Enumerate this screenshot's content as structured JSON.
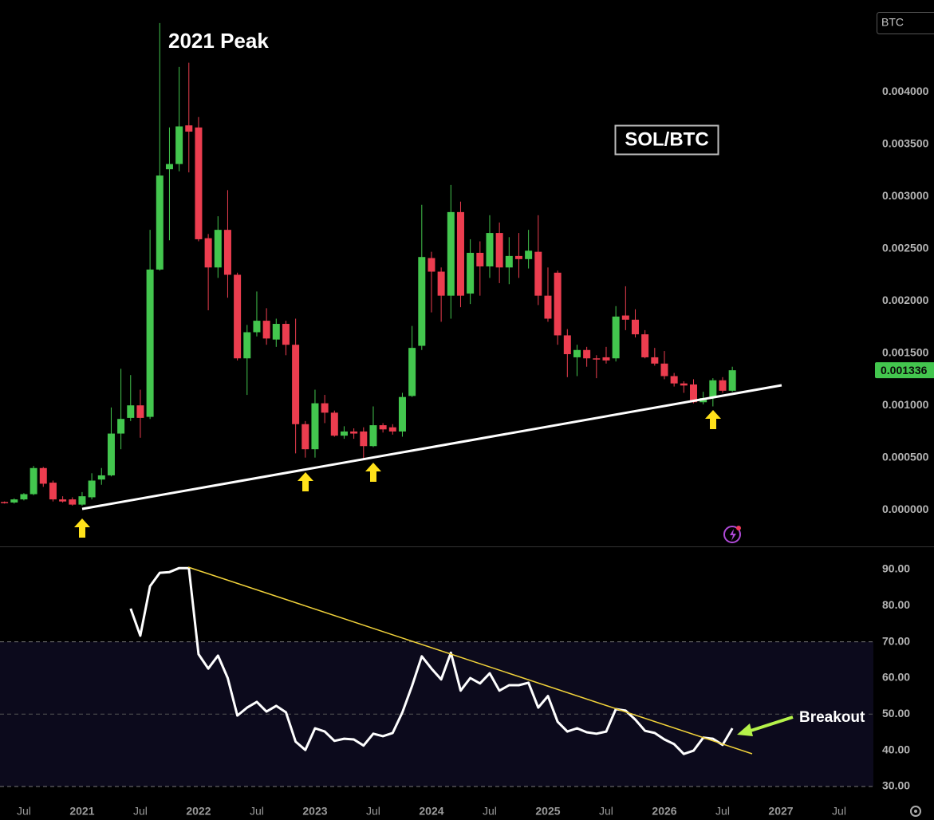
{
  "symbol": "BTC",
  "chart_data": [
    {
      "type": "candlestick",
      "title": "SOL/BTC",
      "annotation": "2021 Peak",
      "up_color": "#43c64e",
      "down_color": "#ec3d4f",
      "x": [
        "2020-05",
        "2020-06",
        "2020-07",
        "2020-08",
        "2020-09",
        "2020-10",
        "2020-11",
        "2020-12",
        "2021-01",
        "2021-02",
        "2021-03",
        "2021-04",
        "2021-05",
        "2021-06",
        "2021-07",
        "2021-08",
        "2021-09",
        "2021-10",
        "2021-11",
        "2021-12",
        "2022-01",
        "2022-02",
        "2022-03",
        "2022-04",
        "2022-05",
        "2022-06",
        "2022-07",
        "2022-08",
        "2022-09",
        "2022-10",
        "2022-11",
        "2022-12",
        "2023-01",
        "2023-02",
        "2023-03",
        "2023-04",
        "2023-05",
        "2023-06",
        "2023-07",
        "2023-08",
        "2023-09",
        "2023-10",
        "2023-11",
        "2023-12",
        "2024-01",
        "2024-02",
        "2024-03",
        "2024-04",
        "2024-05",
        "2024-06",
        "2024-07",
        "2024-08",
        "2024-09",
        "2024-10",
        "2024-11",
        "2024-12",
        "2025-01",
        "2025-02",
        "2025-03",
        "2025-04",
        "2025-05",
        "2025-06",
        "2025-07",
        "2025-08",
        "2025-09",
        "2025-10",
        "2025-11",
        "2025-12",
        "2026-01",
        "2026-02",
        "2026-03",
        "2026-04",
        "2026-05",
        "2026-06",
        "2026-07",
        "2026-08"
      ],
      "open": [
        7.5e-05,
        7e-05,
        0.0001,
        0.00015,
        0.0004,
        0.00026,
        0.0001,
        0.0001,
        5e-05,
        0.00012,
        0.00029,
        0.00033,
        0.00073,
        0.00088,
        0.001,
        0.00089,
        0.0023,
        0.00326,
        0.00331,
        0.00368,
        0.00366,
        0.0026,
        0.00232,
        0.00268,
        0.00225,
        0.00145,
        0.0017,
        0.00181,
        0.00163,
        0.00178,
        0.00158,
        0.00082,
        0.00058,
        0.00102,
        0.00093,
        0.00071,
        0.00075,
        0.00075,
        0.00061,
        0.00081,
        0.00079,
        0.00075,
        0.00109,
        0.00157,
        0.00241,
        0.00228,
        0.00205,
        0.00285,
        0.00207,
        0.00246,
        0.00233,
        0.00265,
        0.00232,
        0.00243,
        0.0024,
        0.00247,
        0.00205,
        0.00227,
        0.00167,
        0.00146,
        0.00153,
        0.00145,
        0.00146,
        0.00145,
        0.00186,
        0.00182,
        0.00168,
        0.00146,
        0.0014,
        0.00128,
        0.00121,
        0.0012,
        0.00103,
        0.00108,
        0.00124,
        0.00114
      ],
      "high": [
        8e-05,
        0.00011,
        0.00016,
        0.00042,
        0.00041,
        0.00028,
        0.00013,
        0.00012,
        0.00017,
        0.00035,
        0.0004,
        0.00098,
        0.00135,
        0.00129,
        0.00115,
        0.00268,
        0.00466,
        0.00366,
        0.00424,
        0.00428,
        0.00376,
        0.00264,
        0.00281,
        0.00306,
        0.00227,
        0.00177,
        0.00209,
        0.00193,
        0.00183,
        0.00181,
        0.00183,
        0.00085,
        0.00115,
        0.0011,
        0.00095,
        0.0008,
        0.00078,
        0.00079,
        0.00099,
        0.00083,
        0.00082,
        0.00112,
        0.00176,
        0.00292,
        0.00247,
        0.00232,
        0.00311,
        0.00295,
        0.00259,
        0.00257,
        0.00282,
        0.00275,
        0.00261,
        0.00265,
        0.00268,
        0.00282,
        0.00232,
        0.00229,
        0.00173,
        0.00158,
        0.00156,
        0.00148,
        0.00156,
        0.00195,
        0.00214,
        0.00192,
        0.00172,
        0.00155,
        0.00152,
        0.00131,
        0.00123,
        0.00125,
        0.00113,
        0.00126,
        0.00127,
        0.00137
      ],
      "low": [
        6e-05,
        6e-05,
        9e-05,
        0.00014,
        0.00022,
        8e-05,
        7e-05,
        4e-05,
        4e-05,
        0.0001,
        0.00024,
        0.00032,
        0.00058,
        0.00085,
        0.00069,
        0.00087,
        0.00229,
        0.00258,
        0.00324,
        0.00323,
        0.00257,
        0.00191,
        0.00222,
        0.00203,
        0.00143,
        0.0011,
        0.00166,
        0.00158,
        0.00156,
        0.00148,
        0.00054,
        0.0005,
        0.0005,
        0.00083,
        0.0007,
        0.00068,
        0.00068,
        0.00049,
        0.0006,
        0.00074,
        0.00072,
        0.0007,
        0.00108,
        0.00153,
        0.00189,
        0.0018,
        0.00183,
        0.00194,
        0.00197,
        0.00205,
        0.00222,
        0.00217,
        0.00216,
        0.00222,
        0.00231,
        0.00196,
        0.0018,
        0.00158,
        0.00127,
        0.00128,
        0.00137,
        0.00126,
        0.0014,
        0.00142,
        0.00172,
        0.00165,
        0.00145,
        0.00138,
        0.00125,
        0.00118,
        0.00112,
        0.00102,
        0.00101,
        0.00099,
        0.00112,
        0.00113
      ],
      "close": [
        7e-05,
        0.0001,
        0.00015,
        0.0004,
        0.00025,
        0.0001,
        8e-05,
        5e-05,
        0.00013,
        0.00028,
        0.00033,
        0.00073,
        0.00087,
        0.001,
        0.00088,
        0.0023,
        0.0032,
        0.00331,
        0.00367,
        0.00362,
        0.00259,
        0.00232,
        0.00268,
        0.00225,
        0.00145,
        0.0017,
        0.00181,
        0.00164,
        0.00178,
        0.00158,
        0.00082,
        0.00058,
        0.00102,
        0.00093,
        0.00071,
        0.00075,
        0.00073,
        0.00061,
        0.00081,
        0.00077,
        0.00075,
        0.00108,
        0.00155,
        0.00242,
        0.00228,
        0.00205,
        0.00285,
        0.00205,
        0.00246,
        0.00233,
        0.00265,
        0.00232,
        0.00243,
        0.0024,
        0.00248,
        0.00205,
        0.00183,
        0.00167,
        0.00149,
        0.00153,
        0.00145,
        0.00144,
        0.00143,
        0.00185,
        0.00182,
        0.00168,
        0.00146,
        0.0014,
        0.00128,
        0.00121,
        0.00119,
        0.00103,
        0.00107,
        0.00124,
        0.00114,
        0.001336
      ],
      "last_price": {
        "value": 0.001336,
        "label": "0.001336"
      },
      "xlim": [
        "2020-05",
        "2027-07"
      ],
      "ylim": [
        -0.00035,
        0.00488
      ],
      "yticks": [
        {
          "value": 0,
          "label": "0.000000"
        },
        {
          "value": 0.0005,
          "label": "0.000500"
        },
        {
          "value": 0.001,
          "label": "0.001000"
        },
        {
          "value": 0.0015,
          "label": "0.001500"
        },
        {
          "value": 0.002,
          "label": "0.002000"
        },
        {
          "value": 0.0025,
          "label": "0.002500"
        },
        {
          "value": 0.003,
          "label": "0.003000"
        },
        {
          "value": 0.0035,
          "label": "0.003500"
        },
        {
          "value": 0.004,
          "label": "0.004000"
        }
      ]
    },
    {
      "type": "line",
      "annotation": "Breakout",
      "color": "#ffffff",
      "x": [
        "2021-06",
        "2021-07",
        "2021-08",
        "2021-09",
        "2021-10",
        "2021-11",
        "2021-12",
        "2022-01",
        "2022-02",
        "2022-03",
        "2022-04",
        "2022-05",
        "2022-06",
        "2022-07",
        "2022-08",
        "2022-09",
        "2022-10",
        "2022-11",
        "2022-12",
        "2023-01",
        "2023-02",
        "2023-03",
        "2023-04",
        "2023-05",
        "2023-06",
        "2023-07",
        "2023-08",
        "2023-09",
        "2023-10",
        "2023-11",
        "2023-12",
        "2024-01",
        "2024-02",
        "2024-03",
        "2024-04",
        "2024-05",
        "2024-06",
        "2024-07",
        "2024-08",
        "2024-09",
        "2024-10",
        "2024-11",
        "2024-12",
        "2025-01",
        "2025-02",
        "2025-03",
        "2025-04",
        "2025-05",
        "2025-06",
        "2025-07",
        "2025-08",
        "2025-09",
        "2025-10",
        "2025-11",
        "2025-12",
        "2026-01",
        "2026-02",
        "2026-03",
        "2026-04",
        "2026-05",
        "2026-06",
        "2026-07",
        "2026-08"
      ],
      "values": [
        79.2,
        71.7,
        85.4,
        89.1,
        89.3,
        90.4,
        90.4,
        66.6,
        62.6,
        66.2,
        60,
        49.6,
        51.8,
        53.4,
        50.7,
        52.3,
        50.5,
        42.4,
        40.1,
        46.1,
        45.2,
        42.6,
        43.2,
        43,
        41.3,
        44.6,
        43.9,
        44.8,
        50.5,
        57.8,
        66,
        62.6,
        59.6,
        67,
        56.5,
        60,
        58.5,
        61.3,
        56.5,
        58,
        58,
        58.7,
        51.8,
        55,
        47.9,
        45.2,
        46.1,
        45,
        44.6,
        45.2,
        51.4,
        51,
        48.5,
        45.4,
        44.8,
        43,
        41.7,
        39,
        39.9,
        43.5,
        43.2,
        41.5,
        46.1
      ],
      "band": [
        30,
        70
      ],
      "midline": 50,
      "xlim": [
        "2020-05",
        "2027-07"
      ],
      "ylim": [
        26.9,
        96.4
      ],
      "yticks": [
        {
          "value": 30,
          "label": "30.00"
        },
        {
          "value": 40,
          "label": "40.00"
        },
        {
          "value": 50,
          "label": "50.00"
        },
        {
          "value": 60,
          "label": "60.00"
        },
        {
          "value": 70,
          "label": "70.00"
        },
        {
          "value": 80,
          "label": "80.00"
        },
        {
          "value": 90,
          "label": "90.00"
        }
      ],
      "xticks": [
        {
          "value": "2020-07",
          "label": "Jul"
        },
        {
          "value": "2021-01",
          "label": "2021"
        },
        {
          "value": "2021-07",
          "label": "Jul"
        },
        {
          "value": "2022-01",
          "label": "2022"
        },
        {
          "value": "2022-07",
          "label": "Jul"
        },
        {
          "value": "2023-01",
          "label": "2023"
        },
        {
          "value": "2023-07",
          "label": "Jul"
        },
        {
          "value": "2024-01",
          "label": "2024"
        },
        {
          "value": "2024-07",
          "label": "Jul"
        },
        {
          "value": "2025-01",
          "label": "2025"
        },
        {
          "value": "2025-07",
          "label": "Jul"
        },
        {
          "value": "2026-01",
          "label": "2026"
        },
        {
          "value": "2026-07",
          "label": "Jul"
        },
        {
          "value": "2027-01",
          "label": "2027"
        },
        {
          "value": "2027-07",
          "label": "Jul"
        }
      ]
    }
  ]
}
